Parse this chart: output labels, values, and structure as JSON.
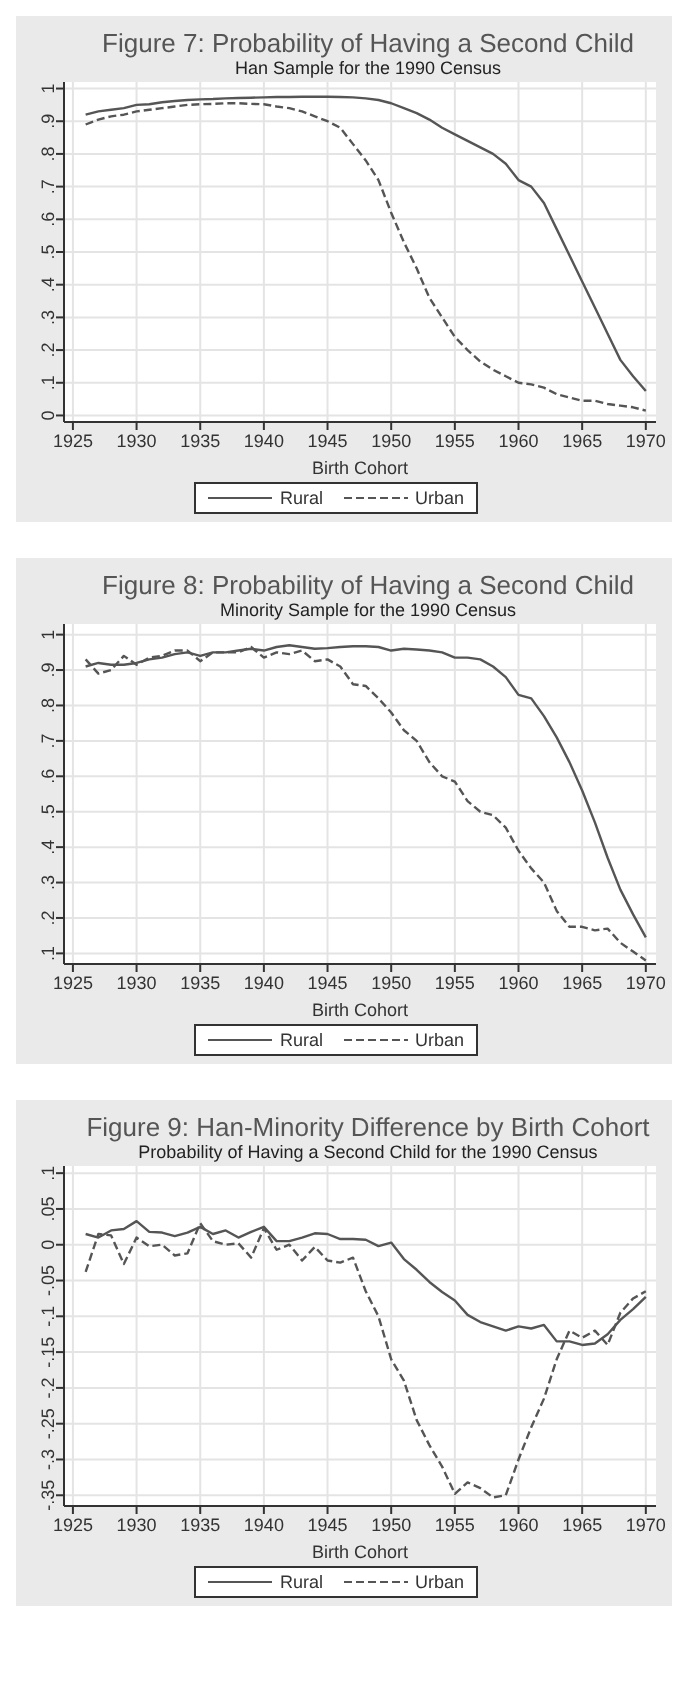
{
  "chart_data": [
    {
      "type": "line",
      "title": "Figure 7: Probability of Having a Second Child",
      "subtitle": "Han Sample for the 1990 Census",
      "xlabel": "Birth Cohort",
      "x": [
        1926,
        1927,
        1928,
        1929,
        1930,
        1931,
        1932,
        1933,
        1934,
        1935,
        1936,
        1937,
        1938,
        1939,
        1940,
        1941,
        1942,
        1943,
        1944,
        1945,
        1946,
        1947,
        1948,
        1949,
        1950,
        1951,
        1952,
        1953,
        1954,
        1955,
        1956,
        1957,
        1958,
        1959,
        1960,
        1961,
        1962,
        1963,
        1964,
        1965,
        1966,
        1967,
        1968,
        1969,
        1970
      ],
      "series": [
        {
          "name": "Rural",
          "color": "#555555",
          "line_style": "solid",
          "values": [
            0.92,
            0.93,
            0.935,
            0.94,
            0.95,
            0.952,
            0.958,
            0.962,
            0.965,
            0.967,
            0.968,
            0.97,
            0.971,
            0.972,
            0.973,
            0.974,
            0.974,
            0.975,
            0.975,
            0.975,
            0.974,
            0.973,
            0.97,
            0.965,
            0.955,
            0.94,
            0.925,
            0.905,
            0.88,
            0.86,
            0.84,
            0.82,
            0.8,
            0.77,
            0.72,
            0.7,
            0.65,
            0.57,
            0.49,
            0.41,
            0.33,
            0.25,
            0.17,
            0.12,
            0.075
          ]
        },
        {
          "name": "Urban",
          "color": "#555555",
          "line_style": "dashed",
          "values": [
            0.89,
            0.905,
            0.915,
            0.92,
            0.93,
            0.935,
            0.94,
            0.945,
            0.95,
            0.952,
            0.953,
            0.955,
            0.955,
            0.953,
            0.952,
            0.945,
            0.94,
            0.93,
            0.915,
            0.9,
            0.88,
            0.83,
            0.78,
            0.72,
            0.62,
            0.53,
            0.45,
            0.36,
            0.3,
            0.24,
            0.2,
            0.165,
            0.14,
            0.12,
            0.1,
            0.095,
            0.085,
            0.065,
            0.055,
            0.045,
            0.045,
            0.035,
            0.03,
            0.025,
            0.015
          ]
        }
      ],
      "xlim": [
        1924.3,
        1970.8
      ],
      "xticks": [
        1925,
        1930,
        1935,
        1940,
        1945,
        1950,
        1955,
        1960,
        1965,
        1970
      ],
      "ylim": [
        -0.02,
        1.02
      ],
      "yticks": [
        {
          "value": 0,
          "label": "0"
        },
        {
          "value": 0.1,
          "label": ".1"
        },
        {
          "value": 0.2,
          "label": ".2"
        },
        {
          "value": 0.3,
          "label": ".3"
        },
        {
          "value": 0.4,
          "label": ".4"
        },
        {
          "value": 0.5,
          "label": ".5"
        },
        {
          "value": 0.6,
          "label": ".6"
        },
        {
          "value": 0.7,
          "label": ".7"
        },
        {
          "value": 0.8,
          "label": ".8"
        },
        {
          "value": 0.9,
          "label": ".9"
        },
        {
          "value": 1,
          "label": "1"
        }
      ],
      "grid": true,
      "legend": "bottom",
      "marker": "none"
    },
    {
      "type": "line",
      "title": "Figure 8: Probability of Having a Second Child",
      "subtitle": "Minority Sample for the 1990 Census",
      "xlabel": "Birth Cohort",
      "x": [
        1926,
        1927,
        1928,
        1929,
        1930,
        1931,
        1932,
        1933,
        1934,
        1935,
        1936,
        1937,
        1938,
        1939,
        1940,
        1941,
        1942,
        1943,
        1944,
        1945,
        1946,
        1947,
        1948,
        1949,
        1950,
        1951,
        1952,
        1953,
        1954,
        1955,
        1956,
        1957,
        1958,
        1959,
        1960,
        1961,
        1962,
        1963,
        1964,
        1965,
        1966,
        1967,
        1968,
        1969,
        1970
      ],
      "series": [
        {
          "name": "Rural",
          "color": "#555555",
          "line_style": "solid",
          "values": [
            0.91,
            0.92,
            0.915,
            0.915,
            0.92,
            0.93,
            0.935,
            0.945,
            0.95,
            0.94,
            0.95,
            0.95,
            0.955,
            0.96,
            0.955,
            0.965,
            0.97,
            0.965,
            0.96,
            0.962,
            0.965,
            0.967,
            0.967,
            0.965,
            0.955,
            0.96,
            0.958,
            0.955,
            0.95,
            0.935,
            0.935,
            0.93,
            0.91,
            0.88,
            0.83,
            0.82,
            0.77,
            0.71,
            0.64,
            0.56,
            0.47,
            0.37,
            0.28,
            0.21,
            0.145
          ]
        },
        {
          "name": "Urban",
          "color": "#555555",
          "line_style": "dashed",
          "values": [
            0.93,
            0.89,
            0.9,
            0.94,
            0.915,
            0.935,
            0.94,
            0.955,
            0.955,
            0.925,
            0.95,
            0.95,
            0.95,
            0.965,
            0.935,
            0.95,
            0.945,
            0.955,
            0.925,
            0.93,
            0.91,
            0.86,
            0.855,
            0.82,
            0.78,
            0.73,
            0.7,
            0.64,
            0.6,
            0.585,
            0.53,
            0.5,
            0.49,
            0.455,
            0.39,
            0.34,
            0.3,
            0.22,
            0.175,
            0.175,
            0.165,
            0.17,
            0.13,
            0.105,
            0.08
          ]
        }
      ],
      "xlim": [
        1924.3,
        1970.8
      ],
      "xticks": [
        1925,
        1930,
        1935,
        1940,
        1945,
        1950,
        1955,
        1960,
        1965,
        1970
      ],
      "ylim": [
        0.07,
        1.03
      ],
      "yticks": [
        {
          "value": 0.1,
          "label": ".1"
        },
        {
          "value": 0.2,
          "label": ".2"
        },
        {
          "value": 0.3,
          "label": ".3"
        },
        {
          "value": 0.4,
          "label": ".4"
        },
        {
          "value": 0.5,
          "label": ".5"
        },
        {
          "value": 0.6,
          "label": ".6"
        },
        {
          "value": 0.7,
          "label": ".7"
        },
        {
          "value": 0.8,
          "label": ".8"
        },
        {
          "value": 0.9,
          "label": ".9"
        },
        {
          "value": 1,
          "label": "1"
        }
      ],
      "grid": true,
      "legend": "bottom",
      "marker": "none"
    },
    {
      "type": "line",
      "title": "Figure 9: Han-Minority Difference by Birth Cohort",
      "subtitle": "Probability of Having a Second Child for the 1990 Census",
      "xlabel": "Birth Cohort",
      "x": [
        1926,
        1927,
        1928,
        1929,
        1930,
        1931,
        1932,
        1933,
        1934,
        1935,
        1936,
        1937,
        1938,
        1939,
        1940,
        1941,
        1942,
        1943,
        1944,
        1945,
        1946,
        1947,
        1948,
        1949,
        1950,
        1951,
        1952,
        1953,
        1954,
        1955,
        1956,
        1957,
        1958,
        1959,
        1960,
        1961,
        1962,
        1963,
        1964,
        1965,
        1966,
        1967,
        1968,
        1969,
        1970
      ],
      "series": [
        {
          "name": "Rural",
          "color": "#555555",
          "line_style": "solid",
          "values": [
            0.015,
            0.01,
            0.02,
            0.022,
            0.033,
            0.018,
            0.017,
            0.012,
            0.017,
            0.025,
            0.015,
            0.02,
            0.01,
            0.018,
            0.025,
            0.005,
            0.005,
            0.01,
            0.016,
            0.015,
            0.008,
            0.008,
            0.007,
            -0.002,
            0.003,
            -0.02,
            -0.035,
            -0.052,
            -0.066,
            -0.078,
            -0.098,
            -0.108,
            -0.114,
            -0.12,
            -0.114,
            -0.117,
            -0.112,
            -0.135,
            -0.135,
            -0.14,
            -0.138,
            -0.125,
            -0.105,
            -0.09,
            -0.073
          ]
        },
        {
          "name": "Urban",
          "color": "#555555",
          "line_style": "dashed",
          "values": [
            -0.038,
            0.015,
            0.013,
            -0.027,
            0.01,
            -0.002,
            0,
            -0.015,
            -0.012,
            0.03,
            0.005,
            0,
            0.002,
            -0.018,
            0.023,
            -0.007,
            0,
            -0.022,
            -0.003,
            -0.022,
            -0.025,
            -0.018,
            -0.065,
            -0.1,
            -0.16,
            -0.19,
            -0.245,
            -0.28,
            -0.31,
            -0.348,
            -0.332,
            -0.34,
            -0.353,
            -0.35,
            -0.3,
            -0.255,
            -0.215,
            -0.16,
            -0.12,
            -0.13,
            -0.12,
            -0.14,
            -0.095,
            -0.075,
            -0.065
          ]
        }
      ],
      "xlim": [
        1924.3,
        1970.8
      ],
      "xticks": [
        1925,
        1930,
        1935,
        1940,
        1945,
        1950,
        1955,
        1960,
        1965,
        1970
      ],
      "ylim": [
        -0.365,
        0.11
      ],
      "yticks": [
        {
          "value": -0.35,
          "label": "-.35"
        },
        {
          "value": -0.3,
          "label": "-.3"
        },
        {
          "value": -0.25,
          "label": "-.25"
        },
        {
          "value": -0.2,
          "label": "-.2"
        },
        {
          "value": -0.15,
          "label": "-.15"
        },
        {
          "value": -0.1,
          "label": "-.1"
        },
        {
          "value": -0.05,
          "label": "-.05"
        },
        {
          "value": 0,
          "label": "0"
        },
        {
          "value": 0.05,
          "label": ".05"
        },
        {
          "value": 0.1,
          "label": ".1"
        }
      ],
      "grid": true,
      "legend": "bottom",
      "marker": "none"
    }
  ]
}
